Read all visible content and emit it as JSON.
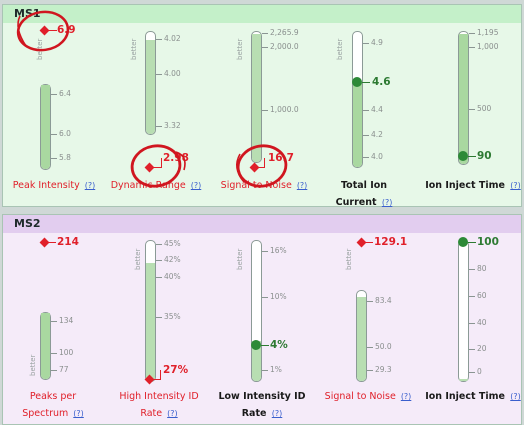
{
  "common": {
    "better": "better",
    "help": "(?)"
  },
  "colors": {
    "ms1_panel_bg": "#e7f8e8",
    "ms1_header_bg": "#c4f0c9",
    "ms2_panel_bg": "#f5ebf9",
    "ms2_header_bg": "#e2cdef",
    "fail_red": "#e0202a",
    "pass_green": "#2d7a32",
    "gauge_fill": "#b8deb2"
  },
  "ms1": {
    "title": "MS1",
    "gauges": [
      {
        "label": "Peak Intensity ",
        "value": "6.9",
        "status": "fail",
        "ticks": [
          "6.4",
          "6.0",
          "5.8"
        ]
      },
      {
        "label": "Dynamic Range ",
        "value": "2.98",
        "status": "fail",
        "ticks": [
          "4.02",
          "4.00",
          "3.32"
        ]
      },
      {
        "label": "Signal to Noise ",
        "value": "16.7",
        "status": "fail",
        "ticks": [
          "2,265.9",
          "2,000.0",
          "1,000.0"
        ]
      },
      {
        "label_line1": "Total Ion",
        "label_line2": "Current ",
        "value": "4.6",
        "status": "pass",
        "ticks": [
          "4.9",
          "4.4",
          "4.2",
          "4.0"
        ]
      },
      {
        "label": "Ion Inject  Time ",
        "value": "90",
        "status": "pass",
        "ticks": [
          "1,195",
          "1,000",
          "500"
        ]
      }
    ]
  },
  "ms2": {
    "title": "MS2",
    "gauges": [
      {
        "label_line1": "Peaks per",
        "label_line2": "Spectrum ",
        "value": "214",
        "status": "fail",
        "ticks": [
          "134",
          "100",
          "77"
        ]
      },
      {
        "label_line1": "High Intensity  ID",
        "label_line2": "Rate ",
        "value": "27%",
        "status": "fail",
        "ticks": [
          "45%",
          "42%",
          "40%",
          "35%"
        ]
      },
      {
        "label_line1": "Low Intensity  ID",
        "label_line2": "Rate ",
        "value": "4%",
        "status": "pass",
        "ticks": [
          "16%",
          "10%",
          "1%"
        ]
      },
      {
        "label": "Signal  to Noise ",
        "value": "129.1",
        "status": "fail",
        "ticks": [
          "83.4",
          "50.0",
          "29.3"
        ]
      },
      {
        "label": "Ion Inject  Time ",
        "value": "100",
        "status": "pass",
        "ticks": [
          "80",
          "60",
          "40",
          "20",
          "0"
        ]
      }
    ]
  }
}
